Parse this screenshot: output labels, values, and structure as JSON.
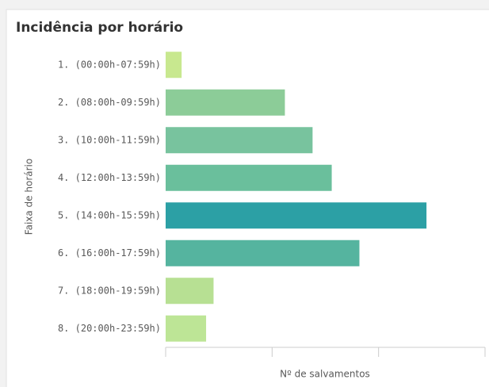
{
  "chart_data": {
    "type": "bar",
    "orientation": "horizontal",
    "title": "Incidência por horário",
    "x_label": "Nº de salvamentos",
    "y_label": "Faixa de horário",
    "categories": [
      "1. (00:00h-07:59h)",
      "2. (08:00h-09:59h)",
      "3. (10:00h-11:59h)",
      "4. (12:00h-13:59h)",
      "5. (14:00h-15:59h)",
      "6. (16:00h-17:59h)",
      "7. (18:00h-19:59h)",
      "8. (20:00h-23:59h)"
    ],
    "values": [
      15,
      112,
      138,
      156,
      245,
      182,
      45,
      38
    ],
    "colors": [
      "#c8e88f",
      "#8ccc98",
      "#78c39e",
      "#6abf9c",
      "#2ca0a5",
      "#55b49f",
      "#b7e093",
      "#bde596"
    ],
    "xlim": [
      0,
      300
    ],
    "xticks": [
      0,
      100,
      200,
      300
    ]
  }
}
